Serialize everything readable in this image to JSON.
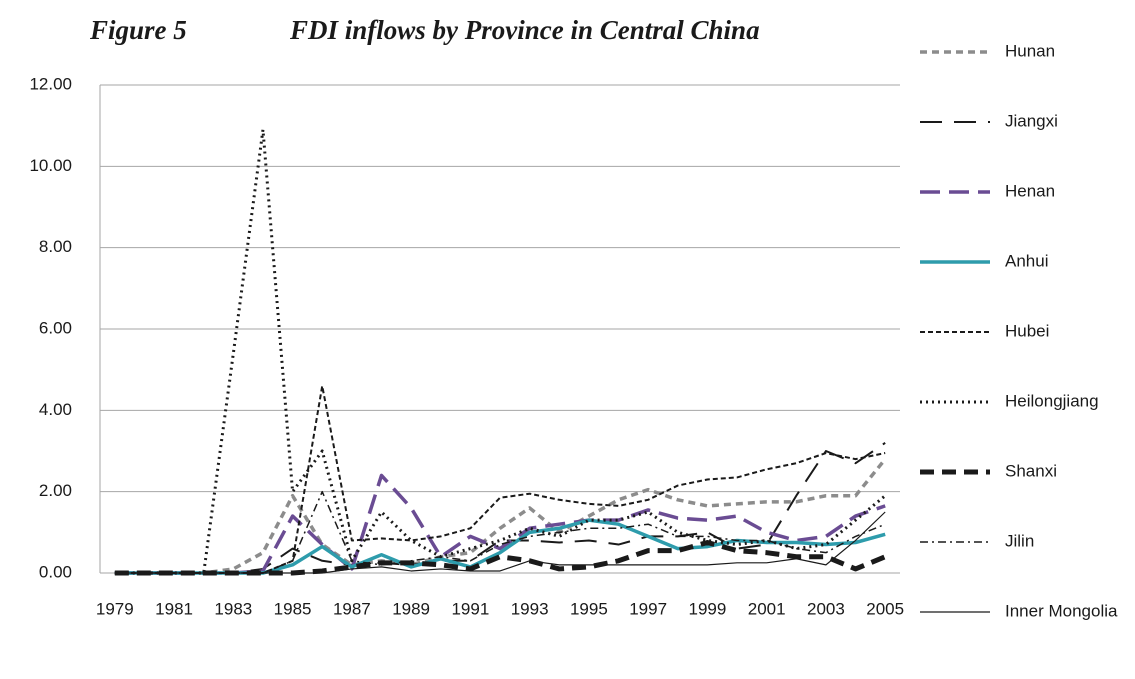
{
  "chart_data": {
    "type": "line",
    "figure_label": "Figure 5",
    "title": "FDI inflows by Province in Central China",
    "x": [
      1979,
      1980,
      1981,
      1982,
      1983,
      1984,
      1985,
      1986,
      1987,
      1988,
      1989,
      1990,
      1991,
      1992,
      1993,
      1994,
      1995,
      1996,
      1997,
      1998,
      1999,
      2000,
      2001,
      2002,
      2003,
      2004,
      2005
    ],
    "xlim": [
      1978.5,
      2005.5
    ],
    "xticks": [
      1979,
      1981,
      1983,
      1985,
      1987,
      1989,
      1991,
      1993,
      1995,
      1997,
      1999,
      2001,
      2003,
      2005
    ],
    "ylim": [
      0,
      12
    ],
    "yticks": [
      {
        "value": 0,
        "label": "0.00"
      },
      {
        "value": 2,
        "label": "2.00"
      },
      {
        "value": 4,
        "label": "4.00"
      },
      {
        "value": 6,
        "label": "6.00"
      },
      {
        "value": 8,
        "label": "8.00"
      },
      {
        "value": 10,
        "label": "10.00"
      },
      {
        "value": 12,
        "label": "12.00"
      }
    ],
    "grid": true,
    "legend": "right",
    "series": [
      {
        "name": "Hunan",
        "color": "#8c8c8c",
        "values": [
          0,
          0,
          0,
          0,
          0.1,
          0.5,
          1.9,
          0.7,
          0.2,
          0.3,
          0.2,
          0.4,
          0.5,
          1.1,
          1.6,
          1.0,
          1.4,
          1.8,
          2.05,
          1.8,
          1.65,
          1.7,
          1.75,
          1.75,
          1.9,
          1.9,
          2.8
        ]
      },
      {
        "name": "Jiangxi",
        "color": "#1a1a1a",
        "values": [
          0,
          0,
          0,
          0,
          0,
          0.1,
          0.6,
          0.3,
          0.2,
          0.25,
          0.2,
          0.3,
          0.3,
          0.8,
          0.8,
          0.75,
          0.8,
          0.7,
          0.9,
          0.9,
          1.0,
          0.6,
          0.7,
          1.9,
          3.0,
          2.7,
          3.2
        ]
      },
      {
        "name": "Henan",
        "color": "#6a4c93",
        "values": [
          0,
          0,
          0,
          0,
          0,
          0.05,
          1.4,
          0.7,
          0.1,
          2.4,
          1.6,
          0.4,
          0.9,
          0.6,
          1.1,
          1.2,
          1.3,
          1.3,
          1.55,
          1.35,
          1.3,
          1.4,
          1.0,
          0.8,
          0.9,
          1.4,
          1.65
        ]
      },
      {
        "name": "Anhui",
        "color": "#2e9cac",
        "values": [
          0,
          0,
          0,
          0,
          0,
          0,
          0.2,
          0.65,
          0.15,
          0.45,
          0.15,
          0.35,
          0.15,
          0.5,
          1.0,
          1.1,
          1.3,
          1.2,
          0.9,
          0.6,
          0.65,
          0.8,
          0.75,
          0.75,
          0.7,
          0.75,
          0.95
        ]
      },
      {
        "name": "Hubei",
        "color": "#1a1a1a",
        "values": [
          0,
          0,
          0,
          0,
          0,
          0,
          0.3,
          4.6,
          0.8,
          0.85,
          0.8,
          0.9,
          1.1,
          1.85,
          1.95,
          1.8,
          1.7,
          1.65,
          1.8,
          2.15,
          2.3,
          2.35,
          2.55,
          2.7,
          2.95,
          2.8,
          2.95
        ]
      },
      {
        "name": "Heilongjiang",
        "color": "#1a1a1a",
        "values": [
          0,
          0,
          0,
          0,
          5.4,
          10.9,
          2.0,
          3.0,
          0.3,
          1.5,
          0.8,
          0.4,
          0.6,
          0.8,
          1.1,
          0.9,
          1.3,
          1.3,
          1.5,
          1.0,
          0.8,
          0.7,
          0.8,
          0.6,
          0.7,
          1.3,
          1.9
        ]
      },
      {
        "name": "Shanxi",
        "color": "#1a1a1a",
        "values": [
          0,
          0,
          0,
          0,
          0,
          0,
          0,
          0.05,
          0.15,
          0.25,
          0.25,
          0.2,
          0.1,
          0.4,
          0.3,
          0.1,
          0.15,
          0.3,
          0.55,
          0.55,
          0.75,
          0.55,
          0.5,
          0.4,
          0.4,
          0.1,
          0.4
        ]
      },
      {
        "name": "Jilin",
        "color": "#1a1a1a",
        "values": [
          0,
          0,
          0,
          0,
          0,
          0,
          0.3,
          2.0,
          0.3,
          0.2,
          0.3,
          0.4,
          0.3,
          0.7,
          0.9,
          1.0,
          1.1,
          1.1,
          1.2,
          0.9,
          0.9,
          0.8,
          0.8,
          0.6,
          0.5,
          0.9,
          1.2
        ]
      },
      {
        "name": "Inner Mongolia",
        "color": "#1a1a1a",
        "values": [
          0,
          0,
          0,
          0,
          0,
          0,
          0,
          0,
          0.1,
          0.15,
          0.05,
          0.1,
          0.05,
          0.05,
          0.3,
          0.2,
          0.2,
          0.2,
          0.2,
          0.2,
          0.2,
          0.25,
          0.25,
          0.35,
          0.2,
          0.8,
          1.5
        ]
      }
    ]
  }
}
